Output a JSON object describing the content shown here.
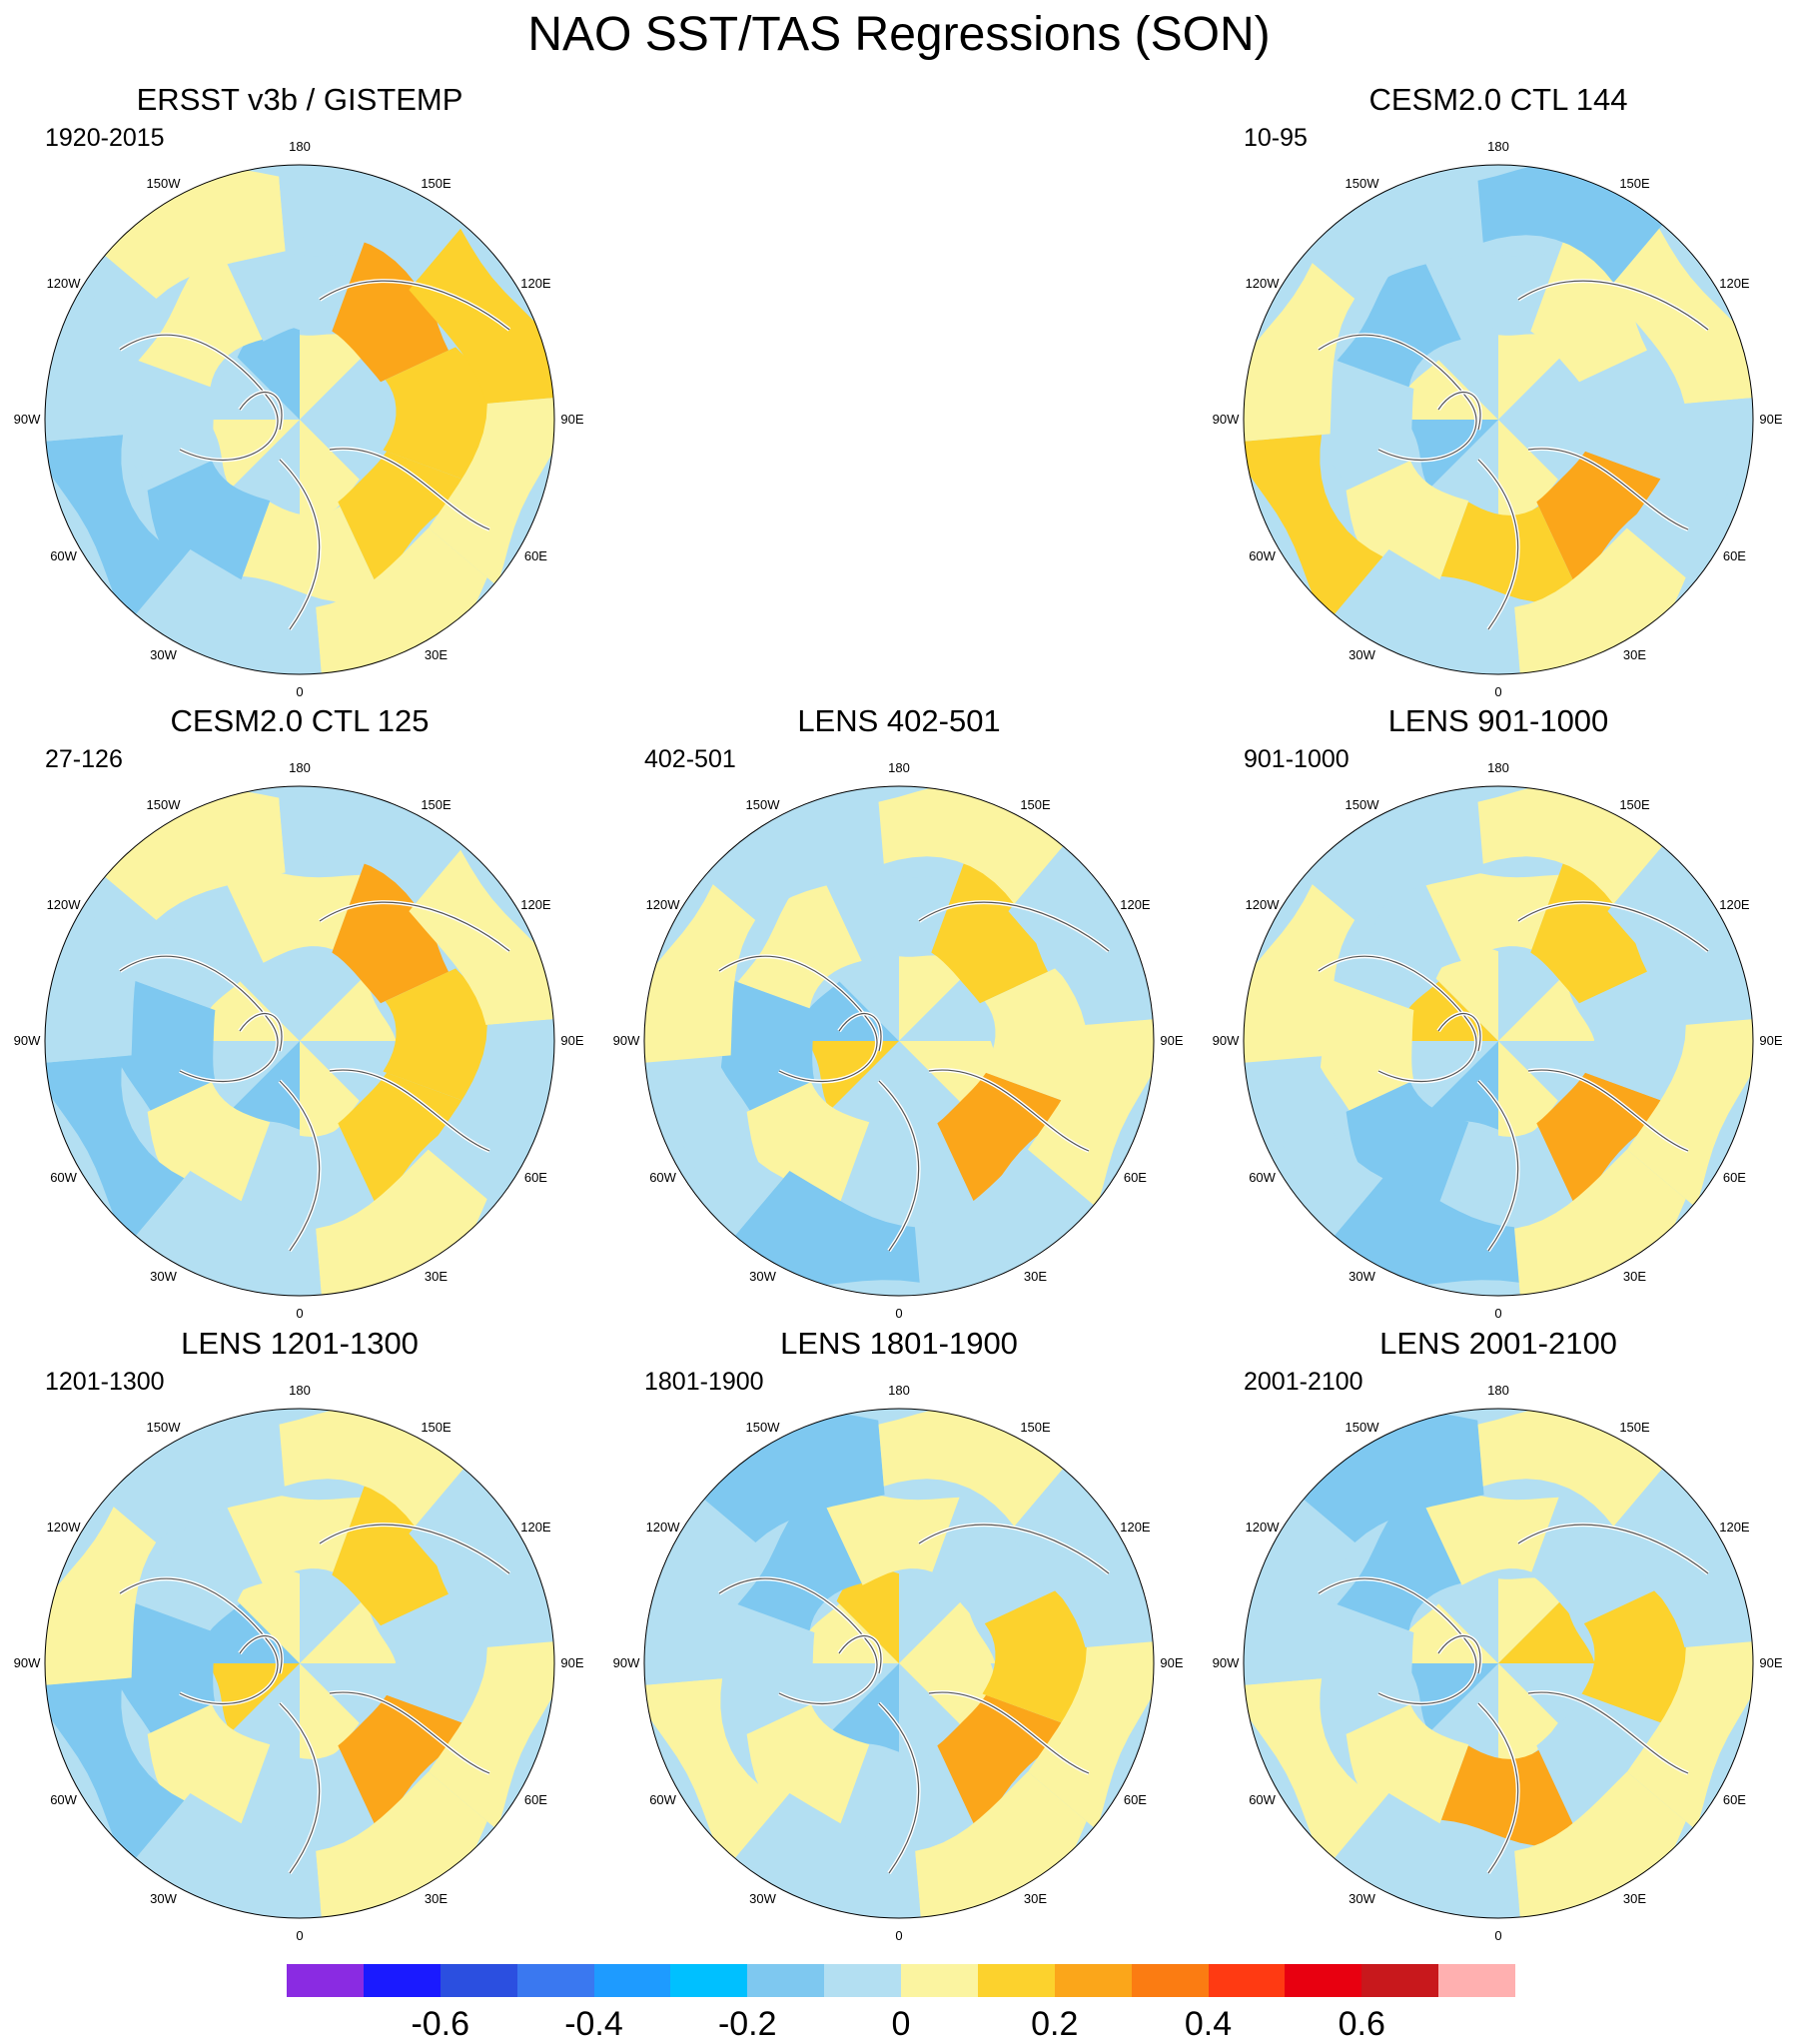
{
  "title": "NAO SST/TAS Regressions (SON)",
  "longitude_labels": [
    "180",
    "150E",
    "120E",
    "90E",
    "60E",
    "30E",
    "0",
    "30W",
    "60W",
    "90W",
    "120W",
    "150W"
  ],
  "panels": [
    {
      "title": "ERSST v3b / GISTEMP",
      "period": "1920-2015",
      "pattern": [
        "A",
        "B",
        "A",
        "B",
        "A",
        "C",
        "B",
        "A",
        "D",
        "B",
        "C",
        "A",
        "B",
        "A",
        "E",
        "D",
        "B",
        "A",
        "C",
        "A",
        "B",
        "A",
        "D",
        "B"
      ]
    },
    {
      "title": "",
      "period": "",
      "empty": true
    },
    {
      "title": "CESM2.0 CTL 144",
      "period": "10-95",
      "pattern": [
        "A",
        "B",
        "A",
        "C",
        "B",
        "A",
        "B",
        "A",
        "E",
        "D",
        "B",
        "A",
        "C",
        "A",
        "B",
        "A",
        "B",
        "A",
        "D",
        "B",
        "A",
        "C",
        "B",
        "A"
      ]
    },
    {
      "title": "CESM2.0 CTL 125",
      "period": "27-126",
      "pattern": [
        "A",
        "B",
        "C",
        "A",
        "B",
        "A",
        "A",
        "B",
        "D",
        "A",
        "B",
        "C",
        "A",
        "B",
        "E",
        "D",
        "B",
        "A",
        "C",
        "A",
        "B",
        "A",
        "B",
        "A"
      ]
    },
    {
      "title": "LENS 402-501",
      "period": "402-501",
      "pattern": [
        "B",
        "A",
        "A",
        "D",
        "C",
        "A",
        "B",
        "A",
        "E",
        "A",
        "B",
        "C",
        "B",
        "A",
        "D",
        "B",
        "A",
        "C",
        "A",
        "B",
        "A",
        "B",
        "A",
        "B"
      ]
    },
    {
      "title": "LENS 901-1000",
      "period": "901-1000",
      "pattern": [
        "A",
        "B",
        "C",
        "A",
        "D",
        "B",
        "A",
        "B",
        "E",
        "A",
        "C",
        "B",
        "A",
        "B",
        "D",
        "A",
        "B",
        "C",
        "A",
        "B",
        "A",
        "B",
        "A",
        "B"
      ]
    },
    {
      "title": "LENS 1201-1300",
      "period": "1201-1300",
      "pattern": [
        "A",
        "B",
        "A",
        "D",
        "C",
        "B",
        "A",
        "B",
        "E",
        "A",
        "B",
        "C",
        "A",
        "B",
        "D",
        "A",
        "B",
        "A",
        "C",
        "B",
        "A",
        "B",
        "A",
        "B"
      ]
    },
    {
      "title": "LENS 1801-1900",
      "period": "1801-1900",
      "pattern": [
        "B",
        "A",
        "C",
        "A",
        "B",
        "D",
        "A",
        "B",
        "E",
        "A",
        "B",
        "A",
        "C",
        "B",
        "A",
        "D",
        "B",
        "A",
        "B",
        "A",
        "C",
        "B",
        "A",
        "B"
      ]
    },
    {
      "title": "LENS 2001-2100",
      "period": "2001-2100",
      "pattern": [
        "A",
        "B",
        "A",
        "C",
        "B",
        "A",
        "B",
        "D",
        "A",
        "E",
        "B",
        "A",
        "C",
        "B",
        "A",
        "D",
        "B",
        "A",
        "B",
        "A",
        "C",
        "B",
        "A",
        "B"
      ]
    }
  ],
  "colorbar": {
    "colors": [
      "#8a2be2",
      "#1a1aff",
      "#2b4fe0",
      "#3a78f0",
      "#1e9bff",
      "#00c0ff",
      "#7ec8f0",
      "#b3dff2",
      "#fbf4a0",
      "#fcd22d",
      "#fba61a",
      "#fb7c12",
      "#ff3a12",
      "#e80010",
      "#c8181c",
      "#ffb0b0"
    ],
    "tick_labels": [
      "-0.6",
      "-0.4",
      "-0.2",
      "0",
      "0.2",
      "0.4",
      "0.6"
    ],
    "tick_values": [
      -0.6,
      -0.4,
      -0.2,
      0,
      0.2,
      0.4,
      0.6
    ],
    "range": [
      -0.8,
      0.8
    ]
  }
}
